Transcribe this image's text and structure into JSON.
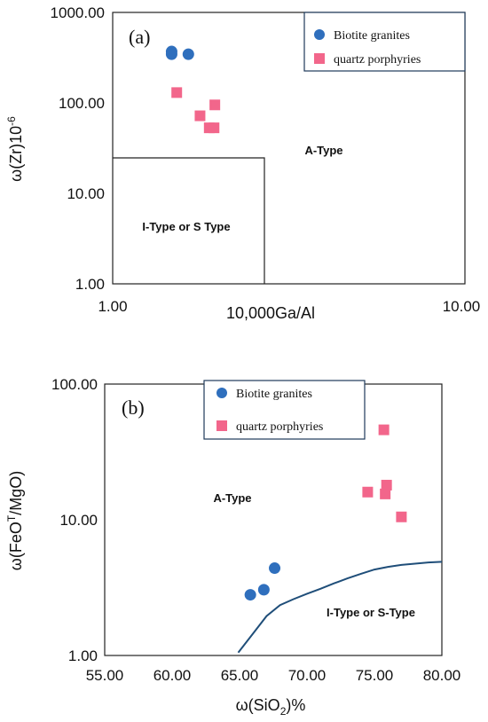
{
  "chart_data": [
    {
      "type": "scatter",
      "panel_label": "(a)",
      "xlabel": "10,000Ga/Al",
      "ylabel": "ω(Zr)10",
      "ylabel_sup": "-6",
      "xscale": "log",
      "yscale": "log",
      "xlim": [
        1,
        10
      ],
      "ylim": [
        1,
        1000
      ],
      "x_ticks": [
        "1.00",
        "10.00"
      ],
      "y_ticks": [
        "1.00",
        "10.00",
        "100.00",
        "1000.00"
      ],
      "legend_position": "top-right",
      "series": [
        {
          "name": "Biotite granites",
          "marker": "circle",
          "color": "#2f6fbd",
          "points": [
            [
              1.47,
              370
            ],
            [
              1.47,
              345
            ],
            [
              1.64,
              345
            ]
          ]
        },
        {
          "name": "quartz porphyries",
          "marker": "square",
          "color": "#f2668b",
          "points": [
            [
              1.52,
              130
            ],
            [
              1.77,
              72
            ],
            [
              1.95,
              95
            ],
            [
              1.88,
              53
            ],
            [
              1.94,
              53
            ]
          ]
        }
      ],
      "regions": [
        {
          "label": "A-Type"
        },
        {
          "label": "I-Type or S Type",
          "boundary": {
            "x_max": 2.6,
            "y_max": 25
          }
        }
      ]
    },
    {
      "type": "scatter",
      "panel_label": "(b)",
      "xlabel": "ω(SiO",
      "xlabel_sub": "2",
      "xlabel_tail": ")%",
      "ylabel": "ω(FeO",
      "ylabel_sup": "T",
      "ylabel_tail": "/MgO)",
      "xscale": "linear",
      "yscale": "log",
      "xlim": [
        55,
        80
      ],
      "ylim": [
        1,
        100
      ],
      "x_ticks": [
        "55.00",
        "60.00",
        "65.00",
        "70.00",
        "75.00",
        "80.00"
      ],
      "y_ticks": [
        "1.00",
        "10.00",
        "100.00"
      ],
      "legend_position": "top-center",
      "series": [
        {
          "name": "Biotite granites",
          "marker": "circle",
          "color": "#2f6fbd",
          "points": [
            [
              65.8,
              2.8
            ],
            [
              66.8,
              3.05
            ],
            [
              67.6,
              4.4
            ]
          ]
        },
        {
          "name": "quartz porphyries",
          "marker": "square",
          "color": "#f2668b",
          "points": [
            [
              75.7,
              46
            ],
            [
              74.5,
              16
            ],
            [
              75.9,
              18
            ],
            [
              75.8,
              15.5
            ],
            [
              77.0,
              10.5
            ]
          ]
        }
      ],
      "boundary_curve": {
        "color": "#1f4e79",
        "points": [
          [
            64.9,
            1.05
          ],
          [
            66.0,
            1.45
          ],
          [
            67.0,
            1.95
          ],
          [
            68.0,
            2.35
          ],
          [
            69.0,
            2.6
          ],
          [
            70.0,
            2.85
          ],
          [
            71.0,
            3.1
          ],
          [
            72.0,
            3.4
          ],
          [
            73.0,
            3.7
          ],
          [
            74.0,
            4.0
          ],
          [
            75.0,
            4.3
          ],
          [
            76.0,
            4.5
          ],
          [
            77.0,
            4.65
          ],
          [
            78.0,
            4.75
          ],
          [
            79.0,
            4.85
          ],
          [
            80.0,
            4.9
          ]
        ]
      },
      "regions": [
        {
          "label": "A-Type"
        },
        {
          "label": "I-Type or S-Type"
        }
      ]
    }
  ]
}
